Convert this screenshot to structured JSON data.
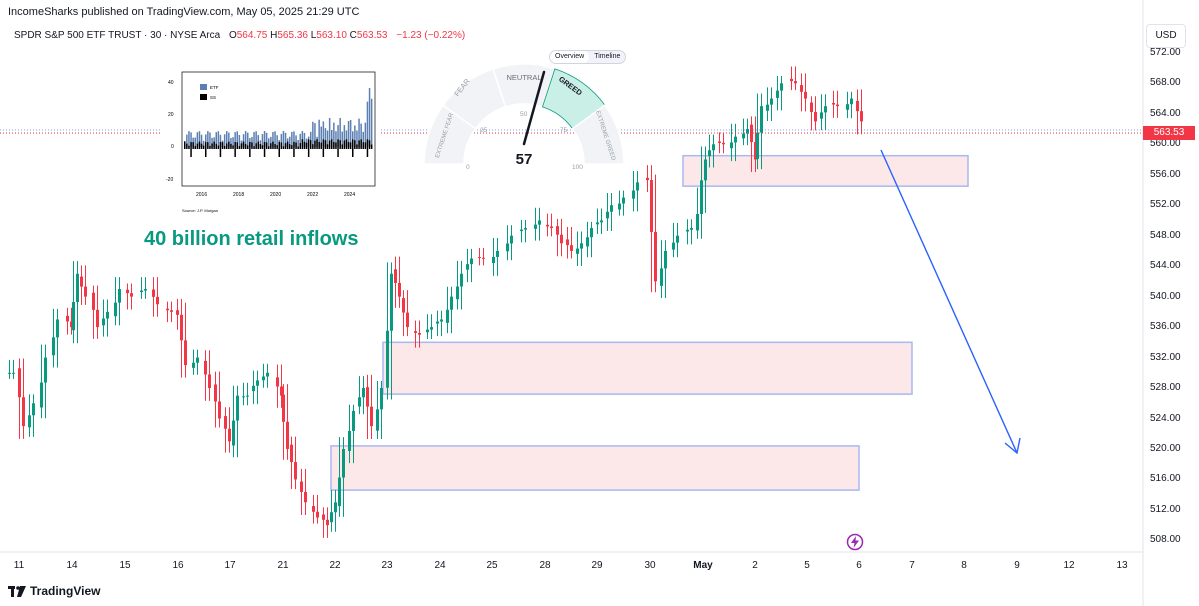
{
  "publisher_line": "IncomeSharks published on TradingView.com, May 05, 2025 21:29 UTC",
  "symbol": {
    "name": "SPDR S&P 500 ETF TRUST · 30 · NYSE Arca",
    "o_label": "O",
    "o": "564.75",
    "h_label": "H",
    "h": "565.36",
    "l_label": "L",
    "l": "563.10",
    "c_label": "C",
    "c": "563.53",
    "change": "−1.23 (−0.22%)"
  },
  "currency_button": "USD",
  "last_price": "563.53",
  "colors": {
    "up": "#089981",
    "down": "#f23645",
    "zone_fill": "#fde2e4",
    "zone_border": "#a8b8f0",
    "arrow": "#2962ff",
    "annotation": "#089981"
  },
  "annotation_text": "40 billion retail inflows",
  "fear_greed": {
    "tabs": [
      "Overview",
      "Timeline"
    ],
    "active_tab": "Overview",
    "value": "57",
    "labels": [
      "EXTREME FEAR",
      "FEAR",
      "NEUTRAL",
      "GREED",
      "EXTREME GREED"
    ],
    "scale": [
      "0",
      "25",
      "50",
      "75",
      "100"
    ]
  },
  "inset_chart": {
    "y_ticks": [
      "40",
      "20",
      "0",
      "-20"
    ],
    "x_ticks": [
      "2016",
      "2018",
      "2020",
      "2022",
      "2024"
    ],
    "legend": [
      "ETF",
      "SS"
    ],
    "legend_colors": [
      "#5b7fb0",
      "#000000"
    ],
    "source": "Source: J.P. Morgan"
  },
  "footer_brand": "TradingView",
  "chart_data": {
    "type": "candlestick",
    "y_ticks": [
      "572.00",
      "568.00",
      "564.00",
      "560.00",
      "556.00",
      "552.00",
      "548.00",
      "544.00",
      "540.00",
      "536.00",
      "532.00",
      "528.00",
      "524.00",
      "520.00",
      "516.00",
      "512.00",
      "508.00"
    ],
    "x_ticks": [
      "11",
      "14",
      "15",
      "16",
      "17",
      "21",
      "22",
      "23",
      "24",
      "25",
      "28",
      "29",
      "30",
      "May",
      "2",
      "5",
      "6",
      "7",
      "8",
      "9",
      "12",
      "13"
    ],
    "ylim": [
      507,
      575
    ],
    "zones": [
      {
        "from_label": "May",
        "to_label": "8",
        "low": 554.5,
        "high": 558.5
      },
      {
        "from_label": "23",
        "to_label": "7",
        "low": 527.2,
        "high": 534.0
      },
      {
        "from_label": "22",
        "to_label": "6",
        "low": 514.6,
        "high": 520.4
      }
    ]
  }
}
